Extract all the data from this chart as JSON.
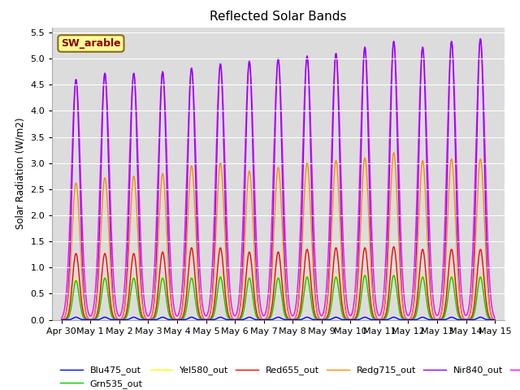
{
  "title": "Reflected Solar Bands",
  "ylabel": "Solar Radiation (W/m2)",
  "xlabel": "",
  "annotation": "SW_arable",
  "annotation_color": "#8B0000",
  "annotation_bg": "#FFFF99",
  "annotation_border": "#8B6914",
  "xlim_start": -0.33,
  "xlim_end": 15.33,
  "ylim": [
    0,
    5.6
  ],
  "yticks": [
    0.0,
    0.5,
    1.0,
    1.5,
    2.0,
    2.5,
    3.0,
    3.5,
    4.0,
    4.5,
    5.0,
    5.5
  ],
  "xtick_labels": [
    "Apr 30",
    "May 1",
    "May 2",
    "May 3",
    "May 4",
    "May 5",
    "May 6",
    "May 7",
    "May 8",
    "May 9",
    "May 10",
    "May 11",
    "May 12",
    "May 13",
    "May 14",
    "May 15"
  ],
  "xtick_positions": [
    0,
    1,
    2,
    3,
    4,
    5,
    6,
    7,
    8,
    9,
    10,
    11,
    12,
    13,
    14,
    15
  ],
  "lines": {
    "Blu475_out": {
      "color": "#0000FF",
      "lw": 1.0
    },
    "Grn535_out": {
      "color": "#00CC00",
      "lw": 1.0
    },
    "Yel580_out": {
      "color": "#FFFF00",
      "lw": 1.0
    },
    "Red655_out": {
      "color": "#FF0000",
      "lw": 1.0
    },
    "Redg715_out": {
      "color": "#FF8C00",
      "lw": 1.0
    },
    "Nir840_out": {
      "color": "#8B00FF",
      "lw": 1.0
    },
    "Nir945_out": {
      "color": "#FF00FF",
      "lw": 1.0
    }
  },
  "peaks_Nir840": [
    4.6,
    4.72,
    4.72,
    4.75,
    4.82,
    4.9,
    4.95,
    5.0,
    5.05,
    5.1,
    5.22,
    5.33,
    5.22,
    5.33,
    5.38
  ],
  "peaks_Nir945": [
    4.6,
    4.72,
    4.72,
    4.75,
    4.82,
    4.9,
    4.95,
    5.0,
    5.05,
    5.1,
    5.22,
    5.33,
    5.22,
    5.33,
    5.38
  ],
  "peaks_Redg715": [
    2.62,
    2.72,
    2.75,
    2.8,
    2.95,
    3.0,
    2.85,
    2.92,
    3.0,
    3.05,
    3.1,
    3.2,
    3.05,
    3.08,
    3.08
  ],
  "peaks_Red655": [
    1.27,
    1.27,
    1.27,
    1.3,
    1.38,
    1.38,
    1.3,
    1.3,
    1.35,
    1.38,
    1.38,
    1.4,
    1.35,
    1.35,
    1.35
  ],
  "peaks_Grn535": [
    0.75,
    0.8,
    0.8,
    0.8,
    0.8,
    0.82,
    0.8,
    0.8,
    0.82,
    0.82,
    0.85,
    0.85,
    0.82,
    0.82,
    0.82
  ],
  "peaks_Blu475": [
    0.05,
    0.05,
    0.05,
    0.05,
    0.05,
    0.05,
    0.05,
    0.05,
    0.05,
    0.05,
    0.05,
    0.05,
    0.05,
    0.05,
    0.05
  ],
  "peaks_Yel580": [
    0.78,
    0.82,
    0.82,
    0.82,
    0.82,
    0.85,
    0.82,
    0.82,
    0.85,
    0.85,
    0.87,
    0.87,
    0.85,
    0.85,
    0.85
  ],
  "plot_bg": "#DCDCDC",
  "grid_color": "white",
  "fig_bg": "white"
}
